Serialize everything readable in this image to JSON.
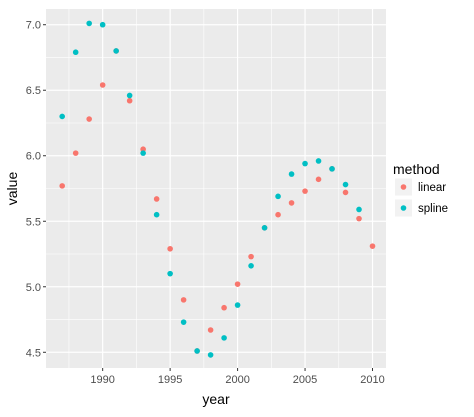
{
  "chart_data": {
    "type": "scatter",
    "xlabel": "year",
    "ylabel": "value",
    "xlim": [
      1985.8,
      2011.0
    ],
    "ylim": [
      4.38,
      7.12
    ],
    "x_ticks": [
      1990,
      1995,
      2000,
      2005,
      2010
    ],
    "x_minor": [
      1987.5,
      1992.5,
      1997.5,
      2002.5,
      2007.5
    ],
    "y_ticks": [
      4.5,
      5.0,
      5.5,
      6.0,
      6.5,
      7.0
    ],
    "y_minor": [
      4.75,
      5.25,
      5.75,
      6.25,
      6.75
    ],
    "grid": true,
    "panel_background": "#ebebeb",
    "grid_color": "#ffffff",
    "legend": {
      "title": "method",
      "position": "right"
    },
    "series": [
      {
        "name": "linear",
        "color": "#f8766d",
        "points": [
          {
            "x": 1987,
            "y": 5.77
          },
          {
            "x": 1988,
            "y": 6.02
          },
          {
            "x": 1989,
            "y": 6.28
          },
          {
            "x": 1990,
            "y": 6.54
          },
          {
            "x": 1991,
            "y": 6.8
          },
          {
            "x": 1992,
            "y": 6.42
          },
          {
            "x": 1993,
            "y": 6.05
          },
          {
            "x": 1994,
            "y": 5.67
          },
          {
            "x": 1995,
            "y": 5.29
          },
          {
            "x": 1996,
            "y": 4.9
          },
          {
            "x": 1997,
            "y": 4.51
          },
          {
            "x": 1998,
            "y": 4.67
          },
          {
            "x": 1999,
            "y": 4.84
          },
          {
            "x": 2000,
            "y": 5.02
          },
          {
            "x": 2001,
            "y": 5.23
          },
          {
            "x": 2002,
            "y": 5.45
          },
          {
            "x": 2003,
            "y": 5.55
          },
          {
            "x": 2004,
            "y": 5.64
          },
          {
            "x": 2005,
            "y": 5.73
          },
          {
            "x": 2006,
            "y": 5.82
          },
          {
            "x": 2007,
            "y": 5.9
          },
          {
            "x": 2008,
            "y": 5.72
          },
          {
            "x": 2009,
            "y": 5.52
          },
          {
            "x": 2010,
            "y": 5.31
          }
        ]
      },
      {
        "name": "spline",
        "color": "#00bfc4",
        "points": [
          {
            "x": 1987,
            "y": 6.3
          },
          {
            "x": 1988,
            "y": 6.79
          },
          {
            "x": 1989,
            "y": 7.01
          },
          {
            "x": 1990,
            "y": 7.0
          },
          {
            "x": 1991,
            "y": 6.8
          },
          {
            "x": 1992,
            "y": 6.46
          },
          {
            "x": 1993,
            "y": 6.02
          },
          {
            "x": 1994,
            "y": 5.55
          },
          {
            "x": 1995,
            "y": 5.1
          },
          {
            "x": 1996,
            "y": 4.73
          },
          {
            "x": 1997,
            "y": 4.51
          },
          {
            "x": 1998,
            "y": 4.48
          },
          {
            "x": 1999,
            "y": 4.61
          },
          {
            "x": 2000,
            "y": 4.86
          },
          {
            "x": 2001,
            "y": 5.16
          },
          {
            "x": 2002,
            "y": 5.45
          },
          {
            "x": 2003,
            "y": 5.69
          },
          {
            "x": 2004,
            "y": 5.86
          },
          {
            "x": 2005,
            "y": 5.94
          },
          {
            "x": 2006,
            "y": 5.96
          },
          {
            "x": 2007,
            "y": 5.9
          },
          {
            "x": 2008,
            "y": 5.78
          },
          {
            "x": 2009,
            "y": 5.59
          }
        ]
      }
    ]
  }
}
